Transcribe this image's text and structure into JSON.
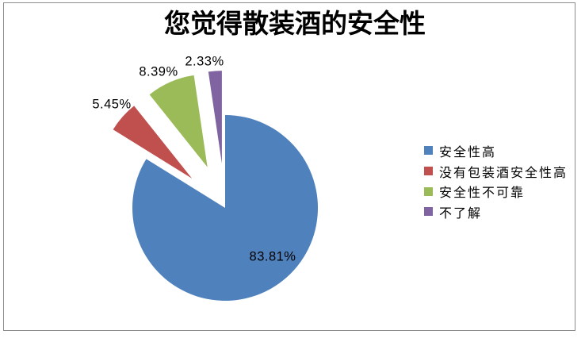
{
  "chart_data": {
    "type": "pie",
    "title": "您觉得散装酒的安全性",
    "categories": [
      "安全性高",
      "没有包装酒安全性高",
      "安全性不可靠",
      "不了解"
    ],
    "values": [
      83.81,
      5.45,
      8.39,
      2.33
    ],
    "value_labels": [
      "83.81%",
      "5.45%",
      "8.39%",
      "2.33%"
    ],
    "colors": [
      "#4F81BD",
      "#C0504D",
      "#9BBB59",
      "#8064A2"
    ],
    "exploded": [
      false,
      true,
      true,
      true
    ],
    "start_angle_deg": 0,
    "direction": "clockwise",
    "legend_position": "right",
    "background_color": "#FFFFFF",
    "border_color": "#8C8C8C",
    "label_color": "#000000"
  }
}
